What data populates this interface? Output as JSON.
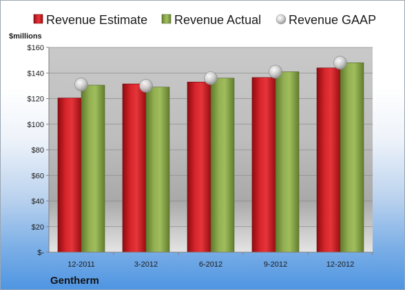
{
  "chart_data": {
    "type": "bar",
    "categories": [
      "12-2011",
      "3-2012",
      "6-2012",
      "9-2012",
      "12-2012"
    ],
    "series": [
      {
        "name": "Revenue Estimate",
        "kind": "bar",
        "color": "#c8161d",
        "values": [
          120.5,
          131.5,
          133,
          136.5,
          144
        ]
      },
      {
        "name": "Revenue Actual",
        "kind": "bar",
        "color": "#8aa84a",
        "values": [
          130.5,
          129,
          136,
          141,
          148
        ]
      },
      {
        "name": "Revenue GAAP",
        "kind": "marker",
        "color": "#c8c8c8",
        "values": [
          131,
          130,
          136,
          141,
          148
        ]
      }
    ],
    "ylabel": "$millions",
    "ylim": [
      0,
      160
    ],
    "yticks": [
      0,
      20,
      40,
      60,
      80,
      100,
      120,
      140,
      160
    ],
    "ytick_labels": [
      "$-",
      "$20",
      "$40",
      "$60",
      "$80",
      "$100",
      "$120",
      "$140",
      "$160"
    ],
    "grid": true,
    "legend_position": "top",
    "company": "Gentherm"
  }
}
